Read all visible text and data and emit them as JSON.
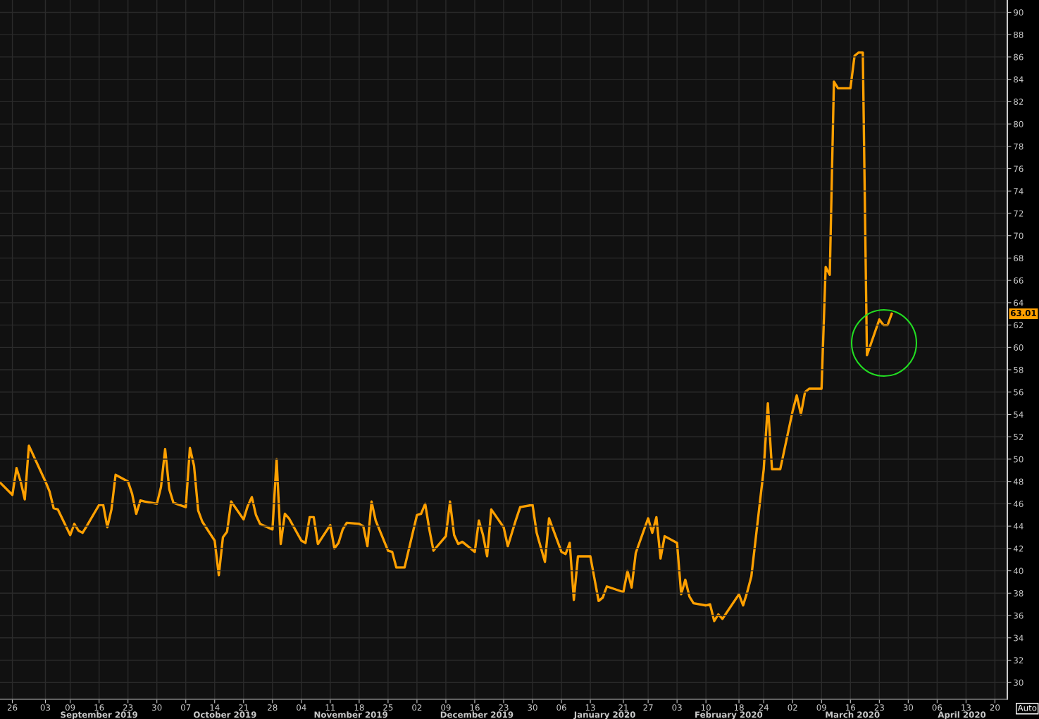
{
  "chart_data": {
    "type": "line",
    "series": [
      {
        "color": "#ffa000",
        "x": [
          "2019-08-23",
          "2019-08-26",
          "2019-08-27",
          "2019-08-28",
          "2019-08-29",
          "2019-08-30",
          "2019-09-03",
          "2019-09-04",
          "2019-09-05",
          "2019-09-06",
          "2019-09-09",
          "2019-09-10",
          "2019-09-11",
          "2019-09-12",
          "2019-09-13",
          "2019-09-16",
          "2019-09-17",
          "2019-09-18",
          "2019-09-19",
          "2019-09-20",
          "2019-09-23",
          "2019-09-24",
          "2019-09-25",
          "2019-09-26",
          "2019-09-27",
          "2019-09-30",
          "2019-10-01",
          "2019-10-02",
          "2019-10-03",
          "2019-10-04",
          "2019-10-07",
          "2019-10-08",
          "2019-10-09",
          "2019-10-10",
          "2019-10-11",
          "2019-10-14",
          "2019-10-15",
          "2019-10-16",
          "2019-10-17",
          "2019-10-18",
          "2019-10-21",
          "2019-10-22",
          "2019-10-23",
          "2019-10-24",
          "2019-10-25",
          "2019-10-28",
          "2019-10-29",
          "2019-10-30",
          "2019-10-31",
          "2019-11-01",
          "2019-11-04",
          "2019-11-05",
          "2019-11-06",
          "2019-11-07",
          "2019-11-08",
          "2019-11-11",
          "2019-11-12",
          "2019-11-13",
          "2019-11-14",
          "2019-11-15",
          "2019-11-18",
          "2019-11-19",
          "2019-11-20",
          "2019-11-21",
          "2019-11-22",
          "2019-11-25",
          "2019-11-26",
          "2019-11-27",
          "2019-11-29",
          "2019-12-02",
          "2019-12-03",
          "2019-12-04",
          "2019-12-05",
          "2019-12-06",
          "2019-12-09",
          "2019-12-10",
          "2019-12-11",
          "2019-12-12",
          "2019-12-13",
          "2019-12-16",
          "2019-12-17",
          "2019-12-18",
          "2019-12-19",
          "2019-12-20",
          "2019-12-23",
          "2019-12-24",
          "2019-12-26",
          "2019-12-27",
          "2019-12-30",
          "2019-12-31",
          "2020-01-02",
          "2020-01-03",
          "2020-01-06",
          "2020-01-07",
          "2020-01-08",
          "2020-01-09",
          "2020-01-10",
          "2020-01-13",
          "2020-01-14",
          "2020-01-15",
          "2020-01-16",
          "2020-01-17",
          "2020-01-21",
          "2020-01-22",
          "2020-01-23",
          "2020-01-24",
          "2020-01-27",
          "2020-01-28",
          "2020-01-29",
          "2020-01-30",
          "2020-01-31",
          "2020-02-03",
          "2020-02-04",
          "2020-02-05",
          "2020-02-06",
          "2020-02-07",
          "2020-02-10",
          "2020-02-11",
          "2020-02-12",
          "2020-02-13",
          "2020-02-14",
          "2020-02-18",
          "2020-02-19",
          "2020-02-20",
          "2020-02-21",
          "2020-02-24",
          "2020-02-25",
          "2020-02-26",
          "2020-02-27",
          "2020-02-28",
          "2020-03-02",
          "2020-03-03",
          "2020-03-04",
          "2020-03-05",
          "2020-03-06",
          "2020-03-09",
          "2020-03-10",
          "2020-03-11",
          "2020-03-12",
          "2020-03-13",
          "2020-03-16",
          "2020-03-17",
          "2020-03-18",
          "2020-03-19",
          "2020-03-20",
          "2020-03-23",
          "2020-03-24",
          "2020-03-25",
          "2020-03-26"
        ],
        "values": [
          47.9,
          46.8,
          49.2,
          48.0,
          46.4,
          51.2,
          48.0,
          47.1,
          45.6,
          45.5,
          43.2,
          44.2,
          43.6,
          43.4,
          44.0,
          45.9,
          45.9,
          43.9,
          45.5,
          48.6,
          48.0,
          46.9,
          45.1,
          46.3,
          46.2,
          46.0,
          47.5,
          50.9,
          47.3,
          46.1,
          45.7,
          51.0,
          49.4,
          45.4,
          44.4,
          42.7,
          39.6,
          43.0,
          43.5,
          46.2,
          44.6,
          45.8,
          46.6,
          45.0,
          44.2,
          43.7,
          50.0,
          42.4,
          45.1,
          44.7,
          42.7,
          42.5,
          44.8,
          44.8,
          42.4,
          44.1,
          42.0,
          42.5,
          43.7,
          44.3,
          44.2,
          44.0,
          42.2,
          46.2,
          44.5,
          41.8,
          41.7,
          40.3,
          40.3,
          45.0,
          45.1,
          46.0,
          43.7,
          41.8,
          43.1,
          46.2,
          43.2,
          42.4,
          42.6,
          41.7,
          44.5,
          43.2,
          41.3,
          45.5,
          43.9,
          42.2,
          44.6,
          45.7,
          45.9,
          43.4,
          40.8,
          44.7,
          41.7,
          41.5,
          42.5,
          37.4,
          41.3,
          41.3,
          39.3,
          37.3,
          37.6,
          38.6,
          38.1,
          40.0,
          38.5,
          41.6,
          44.7,
          43.4,
          44.8,
          41.1,
          43.1,
          42.5,
          37.9,
          39.2,
          37.7,
          37.1,
          36.9,
          37.0,
          35.5,
          36.1,
          35.7,
          37.9,
          36.9,
          38.1,
          39.5,
          49.1,
          55.0,
          49.1,
          49.1,
          49.1,
          54.3,
          55.7,
          54.0,
          56.0,
          56.3,
          56.3,
          67.2,
          66.5,
          83.8,
          83.2,
          83.2,
          86.1,
          86.4,
          86.4,
          59.3,
          62.5,
          62.0,
          62.0,
          63.01
        ]
      }
    ],
    "xlim": [
      "2019-08-23",
      "2020-04-23"
    ],
    "xticks": [
      {
        "value": "2019-08-26",
        "label": "26"
      },
      {
        "value": "2019-09-03",
        "label": "03"
      },
      {
        "value": "2019-09-09",
        "label": "09"
      },
      {
        "value": "2019-09-16",
        "label": "16"
      },
      {
        "value": "2019-09-23",
        "label": "23"
      },
      {
        "value": "2019-09-30",
        "label": "30"
      },
      {
        "value": "2019-10-07",
        "label": "07"
      },
      {
        "value": "2019-10-14",
        "label": "14"
      },
      {
        "value": "2019-10-21",
        "label": "21"
      },
      {
        "value": "2019-10-28",
        "label": "28"
      },
      {
        "value": "2019-11-04",
        "label": "04"
      },
      {
        "value": "2019-11-11",
        "label": "11"
      },
      {
        "value": "2019-11-18",
        "label": "18"
      },
      {
        "value": "2019-11-25",
        "label": "25"
      },
      {
        "value": "2019-12-02",
        "label": "02"
      },
      {
        "value": "2019-12-09",
        "label": "09"
      },
      {
        "value": "2019-12-16",
        "label": "16"
      },
      {
        "value": "2019-12-23",
        "label": "23"
      },
      {
        "value": "2019-12-30",
        "label": "30"
      },
      {
        "value": "2020-01-06",
        "label": "06"
      },
      {
        "value": "2020-01-13",
        "label": "13"
      },
      {
        "value": "2020-01-21",
        "label": "21"
      },
      {
        "value": "2020-01-27",
        "label": "27"
      },
      {
        "value": "2020-02-03",
        "label": "03"
      },
      {
        "value": "2020-02-10",
        "label": "10"
      },
      {
        "value": "2020-02-18",
        "label": "18"
      },
      {
        "value": "2020-02-24",
        "label": "24"
      },
      {
        "value": "2020-03-02",
        "label": "02"
      },
      {
        "value": "2020-03-09",
        "label": "09"
      },
      {
        "value": "2020-03-16",
        "label": "16"
      },
      {
        "value": "2020-03-23",
        "label": "23"
      },
      {
        "value": "2020-03-30",
        "label": "30"
      },
      {
        "value": "2020-04-06",
        "label": "06"
      },
      {
        "value": "2020-04-13",
        "label": "13"
      },
      {
        "value": "2020-04-20",
        "label": "20"
      }
    ],
    "ylim": [
      28.5,
      91.1
    ],
    "yticks": [
      30,
      32,
      34,
      36,
      38,
      40,
      42,
      44,
      46,
      48,
      50,
      52,
      54,
      56,
      58,
      60,
      62,
      64,
      66,
      68,
      70,
      72,
      74,
      76,
      78,
      80,
      82,
      84,
      86,
      88,
      90
    ],
    "grid": true,
    "annotations": [
      "63.01",
      "September 2019",
      "October 2019",
      "November 2019",
      "December 2019",
      "January 2020",
      "February 2020",
      "March 2020",
      "April 2020",
      "Auto"
    ]
  }
}
